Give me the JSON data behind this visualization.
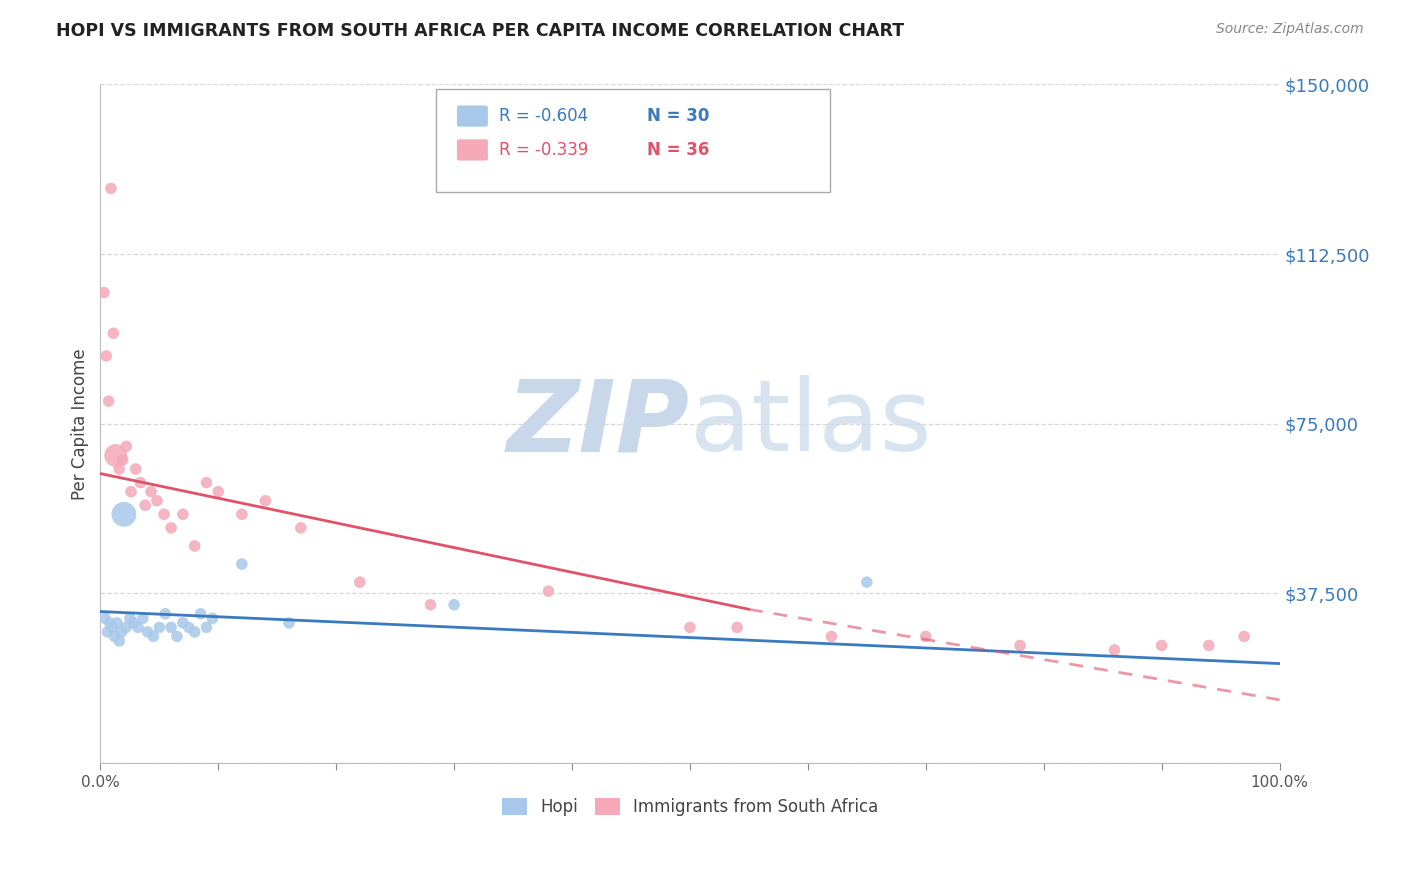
{
  "title": "HOPI VS IMMIGRANTS FROM SOUTH AFRICA PER CAPITA INCOME CORRELATION CHART",
  "source": "Source: ZipAtlas.com",
  "ylabel": "Per Capita Income",
  "xlim": [
    0,
    1.0
  ],
  "ylim": [
    0,
    150000
  ],
  "yticks": [
    0,
    37500,
    75000,
    112500,
    150000
  ],
  "ytick_labels": [
    "",
    "$37,500",
    "$75,000",
    "$112,500",
    "$150,000"
  ],
  "xtick_positions": [
    0.0,
    0.1,
    0.2,
    0.3,
    0.4,
    0.5,
    0.6,
    0.7,
    0.8,
    0.9,
    1.0
  ],
  "xtick_labels": [
    "0.0%",
    "",
    "",
    "",
    "",
    "",
    "",
    "",
    "",
    "",
    "100.0%"
  ],
  "hopi_color": "#a8c8ea",
  "immig_color": "#f4a8b8",
  "trendline_hopi_color": "#3a7abf",
  "trendline_immig_color": "#e0526a",
  "watermark_zip_color": "#c8d8e8",
  "watermark_atlas_color": "#d0dce8",
  "background_color": "#ffffff",
  "grid_color": "#d8d8d8",
  "legend_R_color": "#3a7abf",
  "legend_N_color": "#3a7abf",
  "legend_R_immig_color": "#e0526a",
  "legend_N_immig_color": "#e0526a",
  "hopi_x": [
    0.004,
    0.006,
    0.008,
    0.01,
    0.012,
    0.014,
    0.016,
    0.018,
    0.02,
    0.022,
    0.025,
    0.028,
    0.032,
    0.036,
    0.04,
    0.045,
    0.05,
    0.055,
    0.06,
    0.065,
    0.07,
    0.075,
    0.08,
    0.085,
    0.09,
    0.095,
    0.12,
    0.16,
    0.3,
    0.65
  ],
  "hopi_y": [
    32000,
    29000,
    31000,
    30000,
    28000,
    31000,
    27000,
    29000,
    55000,
    30000,
    32000,
    31000,
    30000,
    32000,
    29000,
    28000,
    30000,
    33000,
    30000,
    28000,
    31000,
    30000,
    29000,
    33000,
    30000,
    32000,
    44000,
    31000,
    35000,
    40000
  ],
  "hopi_size": [
    60,
    60,
    60,
    60,
    60,
    60,
    60,
    60,
    300,
    60,
    60,
    60,
    60,
    60,
    60,
    60,
    60,
    60,
    60,
    60,
    60,
    60,
    60,
    60,
    60,
    60,
    60,
    60,
    60,
    60
  ],
  "immig_x": [
    0.003,
    0.005,
    0.007,
    0.009,
    0.011,
    0.013,
    0.016,
    0.019,
    0.022,
    0.026,
    0.03,
    0.034,
    0.038,
    0.043,
    0.048,
    0.054,
    0.06,
    0.07,
    0.08,
    0.09,
    0.1,
    0.12,
    0.14,
    0.17,
    0.22,
    0.28,
    0.38,
    0.5,
    0.54,
    0.62,
    0.7,
    0.78,
    0.86,
    0.9,
    0.94,
    0.97
  ],
  "immig_y": [
    104000,
    90000,
    80000,
    127000,
    95000,
    68000,
    65000,
    67000,
    70000,
    60000,
    65000,
    62000,
    57000,
    60000,
    58000,
    55000,
    52000,
    55000,
    48000,
    62000,
    60000,
    55000,
    58000,
    52000,
    40000,
    35000,
    38000,
    30000,
    30000,
    28000,
    28000,
    26000,
    25000,
    26000,
    26000,
    28000
  ],
  "immig_size": [
    60,
    60,
    60,
    60,
    60,
    250,
    60,
    60,
    60,
    60,
    60,
    60,
    60,
    60,
    60,
    60,
    60,
    60,
    60,
    60,
    60,
    60,
    60,
    60,
    60,
    60,
    60,
    60,
    60,
    60,
    60,
    60,
    60,
    60,
    60,
    60
  ],
  "hopi_trend_x0": 0.0,
  "hopi_trend_x1": 1.0,
  "hopi_trend_y0": 33500,
  "hopi_trend_y1": 22000,
  "immig_trend_x0": 0.0,
  "immig_trend_x1": 1.0,
  "immig_trend_y0": 64000,
  "immig_trend_y1": 14000,
  "immig_trend_dashed_x0": 0.55,
  "immig_trend_dashed_x1": 1.0,
  "immig_trend_dashed_y0": 34000,
  "immig_trend_dashed_y1": 14000,
  "legend_R_hopi": "-0.604",
  "legend_N_hopi": "30",
  "legend_R_immig": "-0.339",
  "legend_N_immig": "36"
}
